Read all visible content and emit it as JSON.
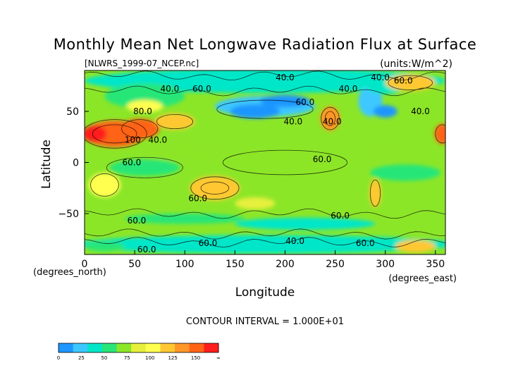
{
  "chart_data": {
    "type": "heatmap",
    "title": "Monthly Mean Net Longwave Radiation Flux at Surface",
    "source_file": "[NLWRS_1999-07_NCEP.nc]",
    "units": "(units:W/m^2)",
    "xlabel": "Longitude",
    "ylabel": "Latitude",
    "x_unit_label": "(degrees_east)",
    "y_unit_label": "(degrees_north)",
    "xlim": [
      0,
      360
    ],
    "ylim": [
      -90,
      90
    ],
    "x_ticks": [
      0,
      50,
      100,
      150,
      200,
      250,
      300,
      350
    ],
    "y_ticks": [
      50,
      0,
      -50
    ],
    "contour_interval_text": "CONTOUR INTERVAL = 1.000E+01",
    "contour_labels": [
      {
        "text": "40.0",
        "lon": 200,
        "lat": 83
      },
      {
        "text": "40.0",
        "lon": 295,
        "lat": 83
      },
      {
        "text": "60.0",
        "lon": 318,
        "lat": 80
      },
      {
        "text": "40.0",
        "lon": 85,
        "lat": 72
      },
      {
        "text": "60.0",
        "lon": 117,
        "lat": 72
      },
      {
        "text": "60.0",
        "lon": 220,
        "lat": 59
      },
      {
        "text": "40.0",
        "lon": 263,
        "lat": 72
      },
      {
        "text": "80.0",
        "lon": 58,
        "lat": 50
      },
      {
        "text": "40.0",
        "lon": 335,
        "lat": 50
      },
      {
        "text": "40.0",
        "lon": 208,
        "lat": 40
      },
      {
        "text": "40.0",
        "lon": 247,
        "lat": 40
      },
      {
        "text": "100",
        "lon": 48,
        "lat": 22
      },
      {
        "text": "40.0",
        "lon": 73,
        "lat": 22
      },
      {
        "text": "60.0",
        "lon": 47,
        "lat": 0
      },
      {
        "text": "60.0",
        "lon": 237,
        "lat": 3
      },
      {
        "text": "60.0",
        "lon": 113,
        "lat": -35
      },
      {
        "text": "60.0",
        "lon": 52,
        "lat": -57
      },
      {
        "text": "60.0",
        "lon": 255,
        "lat": -52
      },
      {
        "text": "40.0",
        "lon": 210,
        "lat": -77
      },
      {
        "text": "60.0",
        "lon": 280,
        "lat": -79
      },
      {
        "text": "60.0",
        "lon": 123,
        "lat": -79
      },
      {
        "text": "60.0",
        "lon": 62,
        "lat": -85
      }
    ],
    "colorbar": {
      "levels": [
        "0",
        "25",
        "50",
        "75",
        "100",
        "125",
        "150",
        "∞"
      ],
      "colors": [
        "#1e96ff",
        "#3cc8ff",
        "#00e6c8",
        "#28e678",
        "#8ce628",
        "#e6f03c",
        "#ffff50",
        "#ffc832",
        "#ff9628",
        "#ff6414",
        "#ff1e1e"
      ]
    }
  }
}
